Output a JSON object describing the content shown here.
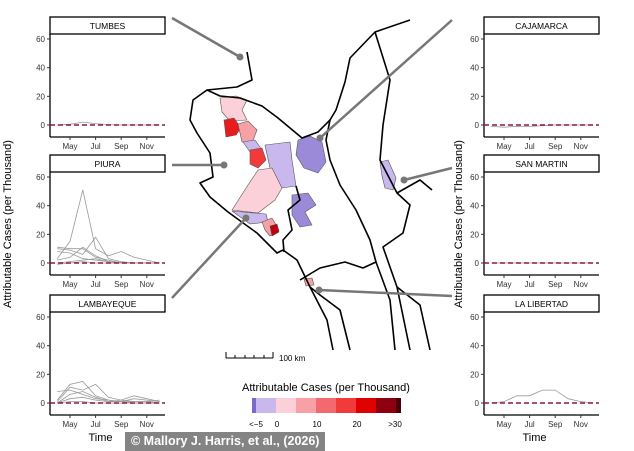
{
  "y_axis_label": "Attributable Cases (per Thousand)",
  "x_axis_label": "Time",
  "scale_bar_label": "100 km",
  "copyright": "© Mallory J. Harris, et al., (2026)",
  "legend": {
    "title": "Attributable Cases (per Thousand)",
    "tick_labels": [
      "<−5",
      "0",
      "10",
      "20",
      ">30"
    ],
    "colors": [
      "#7b68c8",
      "#c9b8ee",
      "#fbd0d8",
      "#f7a0a5",
      "#f26a6e",
      "#f23a3a",
      "#e00000",
      "#8e0010",
      "#4a0008"
    ]
  },
  "colors": {
    "reference_line": "#8b1a3a",
    "series_line": "#999999",
    "leader_line": "#777777"
  },
  "chart_data": [
    {
      "type": "line",
      "title": "TUMBES",
      "xlabel": "",
      "ylabel": "Attributable Cases (per Thousand)",
      "x_ticks": [
        "May",
        "Jul",
        "Sep",
        "Nov"
      ],
      "y_ticks": [
        0,
        20,
        40,
        60
      ],
      "ylim": [
        -3,
        64
      ],
      "reference_line": 0,
      "x": [
        "Apr",
        "May",
        "Jun",
        "Jul",
        "Aug",
        "Sep",
        "Oct",
        "Nov",
        "Dec"
      ],
      "series": [
        {
          "values": [
            0,
            0.5,
            2,
            1,
            0.3,
            0,
            0,
            0,
            0
          ]
        }
      ]
    },
    {
      "type": "line",
      "title": "PIURA",
      "xlabel": "",
      "ylabel": "Attributable Cases (per Thousand)",
      "x_ticks": [
        "May",
        "Jul",
        "Sep",
        "Nov"
      ],
      "y_ticks": [
        0,
        20,
        40,
        60
      ],
      "ylim": [
        -3,
        64
      ],
      "reference_line": 0,
      "x": [
        "Apr",
        "May",
        "Jun",
        "Jul",
        "Aug",
        "Sep",
        "Oct",
        "Nov",
        "Dec"
      ],
      "series": [
        {
          "values": [
            3,
            15,
            51,
            10,
            5,
            8,
            4,
            2,
            0
          ]
        },
        {
          "values": [
            10,
            9,
            6,
            18,
            3,
            1,
            0,
            0,
            0
          ]
        },
        {
          "values": [
            11,
            10,
            10,
            4,
            2,
            0,
            0,
            0,
            0
          ]
        },
        {
          "values": [
            2,
            4,
            11,
            5,
            1,
            0,
            0,
            0,
            0
          ]
        },
        {
          "values": [
            8,
            7,
            3,
            2,
            1,
            0.5,
            0,
            0,
            0
          ]
        },
        {
          "values": [
            0,
            1,
            2,
            3,
            1,
            0,
            0,
            0,
            0
          ]
        },
        {
          "values": [
            -1,
            0,
            1,
            0,
            0,
            0,
            0,
            0,
            0
          ]
        }
      ]
    },
    {
      "type": "line",
      "title": "LAMBAYEQUE",
      "xlabel": "Time",
      "ylabel": "Attributable Cases (per Thousand)",
      "x_ticks": [
        "May",
        "Jul",
        "Sep",
        "Nov"
      ],
      "y_ticks": [
        0,
        20,
        40,
        60
      ],
      "ylim": [
        -3,
        64
      ],
      "reference_line": 0,
      "x": [
        "Apr",
        "May",
        "Jun",
        "Jul",
        "Aug",
        "Sep",
        "Oct",
        "Nov",
        "Dec"
      ],
      "series": [
        {
          "values": [
            2,
            13,
            15,
            5,
            2,
            1,
            3,
            2,
            1
          ]
        },
        {
          "values": [
            1,
            11,
            9,
            13,
            4,
            2,
            5,
            3,
            1
          ]
        },
        {
          "values": [
            8,
            9,
            6,
            3,
            2,
            1,
            1,
            1,
            0
          ]
        },
        {
          "values": [
            0,
            6,
            8,
            4,
            1,
            2,
            1,
            1,
            2
          ]
        },
        {
          "values": [
            0,
            3,
            4,
            2,
            1,
            1,
            0,
            0,
            0
          ]
        },
        {
          "values": [
            0,
            1,
            1,
            0,
            0,
            0,
            0,
            0,
            0
          ]
        }
      ]
    },
    {
      "type": "line",
      "title": "CAJAMARCA",
      "xlabel": "",
      "ylabel": "Attributable Cases (per Thousand)",
      "x_ticks": [
        "May",
        "Jul",
        "Sep",
        "Nov"
      ],
      "y_ticks": [
        0,
        20,
        40,
        60
      ],
      "ylim": [
        -3,
        64
      ],
      "reference_line": 0,
      "x": [
        "Apr",
        "May",
        "Jun",
        "Jul",
        "Aug",
        "Sep",
        "Oct",
        "Nov",
        "Dec"
      ],
      "series": [
        {
          "values": [
            -1,
            -1.5,
            -1,
            -1,
            -0.5,
            0,
            0,
            0,
            0
          ]
        }
      ]
    },
    {
      "type": "line",
      "title": "SAN MARTIN",
      "xlabel": "",
      "ylabel": "Attributable Cases (per Thousand)",
      "x_ticks": [
        "May",
        "Jul",
        "Sep",
        "Nov"
      ],
      "y_ticks": [
        0,
        20,
        40,
        60
      ],
      "ylim": [
        -3,
        64
      ],
      "reference_line": 0,
      "x": [
        "Apr",
        "May",
        "Jun",
        "Jul",
        "Aug",
        "Sep",
        "Oct",
        "Nov",
        "Dec"
      ],
      "series": [
        {
          "values": [
            0,
            0,
            0,
            0,
            0,
            0,
            0,
            0,
            0
          ]
        }
      ]
    },
    {
      "type": "line",
      "title": "LA LIBERTAD",
      "xlabel": "Time",
      "ylabel": "Attributable Cases (per Thousand)",
      "x_ticks": [
        "May",
        "Jul",
        "Sep",
        "Nov"
      ],
      "y_ticks": [
        0,
        20,
        40,
        60
      ],
      "ylim": [
        -3,
        64
      ],
      "reference_line": 0,
      "x": [
        "Apr",
        "May",
        "Jun",
        "Jul",
        "Aug",
        "Sep",
        "Oct",
        "Nov",
        "Dec"
      ],
      "series": [
        {
          "values": [
            0,
            1,
            5,
            5,
            9,
            9,
            3,
            1,
            0
          ]
        }
      ]
    }
  ]
}
